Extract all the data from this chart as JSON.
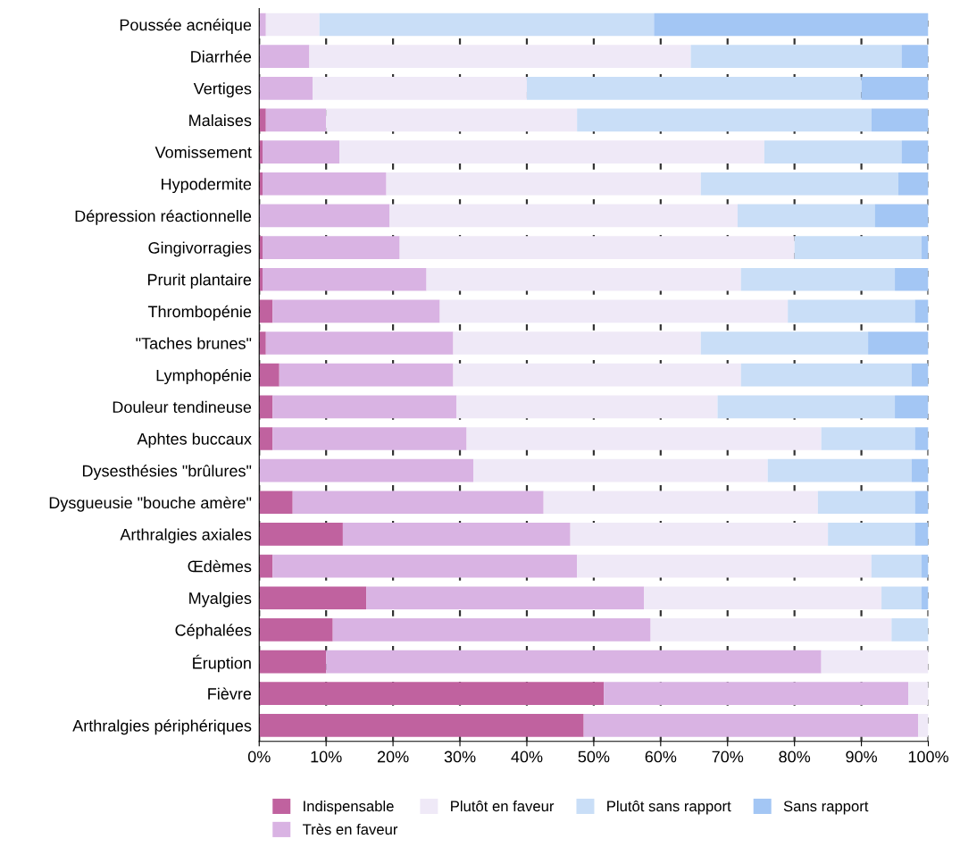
{
  "chart_data": {
    "type": "bar",
    "orientation": "horizontal",
    "stacked": true,
    "categories": [
      "Poussée acnéique",
      "Diarrhée",
      "Vertiges",
      "Malaises",
      "Vomissement",
      "Hypodermite",
      "Dépression réactionnelle",
      "Gingivorragies",
      "Prurit plantaire",
      "Thrombopénie",
      "\"Taches brunes\"",
      "Lymphopénie",
      "Douleur tendineuse",
      "Aphtes buccaux",
      "Dysesthésies \"brûlures\"",
      "Dysgueusie \"bouche amère\"",
      "Arthralgies axiales",
      "Œdèmes",
      "Myalgies",
      "Céphalées",
      "Éruption",
      "Fièvre",
      "Arthralgies périphériques"
    ],
    "series": [
      {
        "name": "Indispensable",
        "color": "#c0629f",
        "values": [
          0,
          0,
          0,
          1,
          0.5,
          0.5,
          0,
          0.5,
          0.5,
          2,
          1,
          3,
          2,
          2,
          0,
          5,
          12.5,
          2,
          16,
          11,
          10,
          51.5,
          48.5
        ]
      },
      {
        "name": "Très en faveur",
        "color": "#d9b3e3",
        "values": [
          1,
          7.5,
          8,
          9,
          11.5,
          18.5,
          19.5,
          20.5,
          24.5,
          25,
          28,
          26,
          27.5,
          29,
          32,
          37.5,
          34,
          45.5,
          41.5,
          47.5,
          74,
          45.5,
          50
        ]
      },
      {
        "name": "Plutôt en faveur",
        "color": "#efe9f7",
        "values": [
          8,
          57,
          32,
          37.5,
          63.5,
          47,
          52,
          59,
          47,
          52,
          37,
          43,
          39,
          53,
          44,
          41,
          38.5,
          44,
          35.5,
          36,
          16,
          3,
          1.5
        ]
      },
      {
        "name": "Plutôt sans rapport",
        "color": "#c9def7",
        "values": [
          50,
          31.5,
          50,
          44,
          20.5,
          29.5,
          20.5,
          19,
          23,
          19,
          25,
          25.5,
          26.5,
          14,
          21.5,
          14.5,
          13,
          7.5,
          6,
          5.5,
          0,
          0,
          0
        ]
      },
      {
        "name": "Sans rapport",
        "color": "#a3c6f4",
        "values": [
          41,
          4,
          10,
          8.5,
          4,
          4.5,
          8,
          1,
          5,
          2,
          9,
          2.5,
          5,
          2,
          2.5,
          2,
          2,
          1,
          1,
          0,
          0,
          0,
          0
        ]
      }
    ],
    "xlim": [
      0,
      100
    ],
    "xticks": [
      {
        "value": 0,
        "label": "0%"
      },
      {
        "value": 10,
        "label": "10%"
      },
      {
        "value": 20,
        "label": "20%"
      },
      {
        "value": 30,
        "label": "30%"
      },
      {
        "value": 40,
        "label": "40%"
      },
      {
        "value": 50,
        "label": "50%"
      },
      {
        "value": 60,
        "label": "60%"
      },
      {
        "value": 70,
        "label": "70%"
      },
      {
        "value": 80,
        "label": "80%"
      },
      {
        "value": 90,
        "label": "90%"
      },
      {
        "value": 100,
        "label": "100%"
      }
    ],
    "grid": "x",
    "legend": "bottom"
  }
}
